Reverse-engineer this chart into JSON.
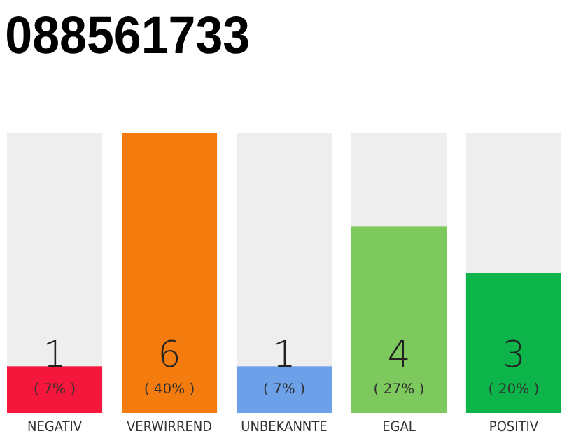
{
  "chart_data": {
    "type": "bar",
    "title": "088561733",
    "categories": [
      "NEGATIV",
      "VERWIRREND",
      "UNBEKANNTE",
      "EGAL",
      "POSITIV"
    ],
    "values": [
      1,
      6,
      1,
      4,
      3
    ],
    "colors": [
      "#f5163b",
      "#f47c0e",
      "#6ca0e8",
      "#7ec95e",
      "#0cb44a"
    ],
    "data_labels": true,
    "annotations": [
      "( 7% )",
      "( 40% )",
      "( 7% )",
      "( 27% )",
      "( 20% )"
    ]
  }
}
